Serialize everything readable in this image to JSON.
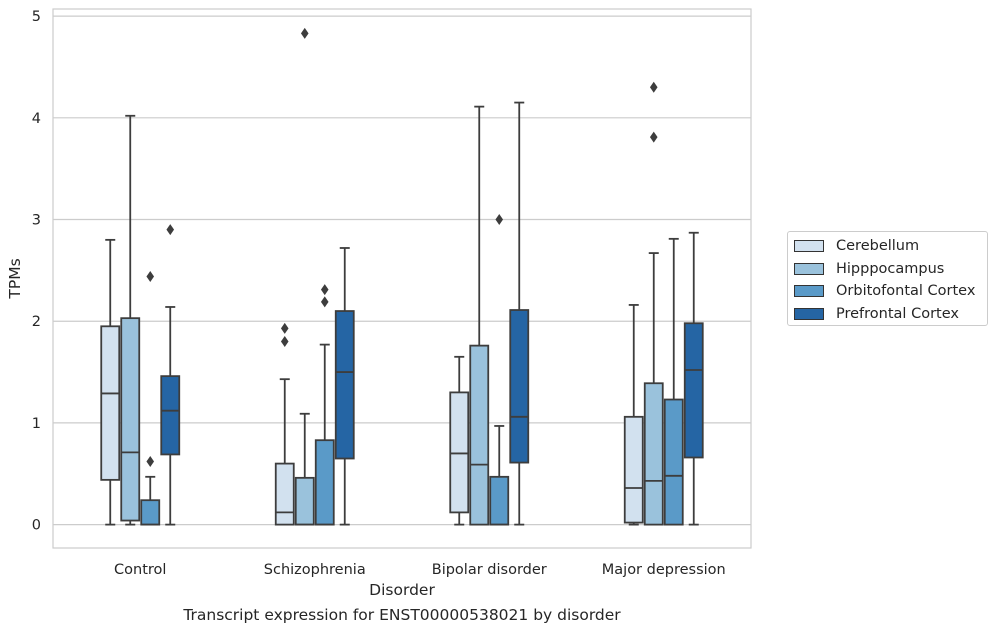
{
  "caption": "Transcript expression for ENST00000538021 by disorder",
  "chart_data": {
    "type": "box",
    "title": "",
    "xlabel": "Disorder",
    "ylabel": "TPMs",
    "ylim": [
      -0.23,
      5.07
    ],
    "yticks": [
      0,
      1,
      2,
      3,
      4,
      5
    ],
    "grid": "horizontal",
    "legend_placement": "right",
    "categories": [
      "Control",
      "Schizophrenia",
      "Bipolar disorder",
      "Major depression"
    ],
    "series": [
      {
        "name": "Cerebellum",
        "color": "#d2e1ef",
        "boxes": [
          {
            "whislo": 0.0,
            "q1": 0.44,
            "median": 1.29,
            "q3": 1.95,
            "whishi": 2.8,
            "fliers": []
          },
          {
            "whislo": 0.0,
            "q1": 0.0,
            "median": 0.12,
            "q3": 0.6,
            "whishi": 1.43,
            "fliers": [
              1.8,
              1.93
            ]
          },
          {
            "whislo": 0.0,
            "q1": 0.12,
            "median": 0.7,
            "q3": 1.3,
            "whishi": 1.65,
            "fliers": []
          },
          {
            "whislo": 0.0,
            "q1": 0.02,
            "median": 0.36,
            "q3": 1.06,
            "whishi": 2.16,
            "fliers": []
          }
        ]
      },
      {
        "name": "Hipppocampus",
        "color": "#9ac2dc",
        "boxes": [
          {
            "whislo": 0.0,
            "q1": 0.04,
            "median": 0.71,
            "q3": 2.03,
            "whishi": 4.02,
            "fliers": []
          },
          {
            "whislo": 0.0,
            "q1": 0.0,
            "median": 0.0,
            "q3": 0.46,
            "whishi": 1.09,
            "fliers": [
              4.83
            ]
          },
          {
            "whislo": 0.0,
            "q1": 0.0,
            "median": 0.59,
            "q3": 1.76,
            "whishi": 4.11,
            "fliers": []
          },
          {
            "whislo": 0.0,
            "q1": 0.0,
            "median": 0.43,
            "q3": 1.39,
            "whishi": 2.67,
            "fliers": [
              3.81,
              4.3
            ]
          }
        ]
      },
      {
        "name": "Orbitofontal Cortex",
        "color": "#5a9ac8",
        "boxes": [
          {
            "whislo": 0.0,
            "q1": 0.0,
            "median": 0.0,
            "q3": 0.24,
            "whishi": 0.47,
            "fliers": [
              0.62,
              2.44
            ]
          },
          {
            "whislo": 0.0,
            "q1": 0.0,
            "median": 0.0,
            "q3": 0.83,
            "whishi": 1.77,
            "fliers": [
              2.19,
              2.31
            ]
          },
          {
            "whislo": 0.0,
            "q1": 0.0,
            "median": 0.0,
            "q3": 0.47,
            "whishi": 0.97,
            "fliers": [
              3.0
            ]
          },
          {
            "whislo": 0.0,
            "q1": 0.0,
            "median": 0.48,
            "q3": 1.23,
            "whishi": 2.81,
            "fliers": []
          }
        ]
      },
      {
        "name": "Prefrontal Cortex",
        "color": "#2565a4",
        "boxes": [
          {
            "whislo": 0.0,
            "q1": 0.69,
            "median": 1.12,
            "q3": 1.46,
            "whishi": 2.14,
            "fliers": [
              2.9
            ]
          },
          {
            "whislo": 0.0,
            "q1": 0.65,
            "median": 1.5,
            "q3": 2.1,
            "whishi": 2.72,
            "fliers": []
          },
          {
            "whislo": 0.0,
            "q1": 0.61,
            "median": 1.06,
            "q3": 2.11,
            "whishi": 4.15,
            "fliers": []
          },
          {
            "whislo": 0.0,
            "q1": 0.66,
            "median": 1.52,
            "q3": 1.98,
            "whishi": 2.87,
            "fliers": []
          }
        ]
      }
    ]
  }
}
